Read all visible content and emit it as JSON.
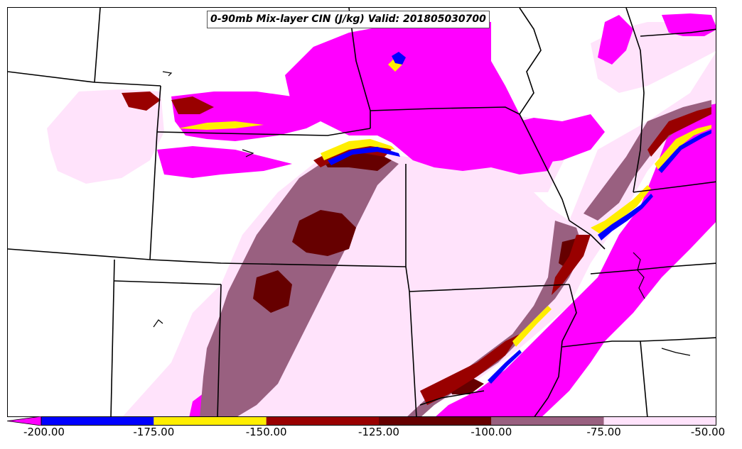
{
  "title": "0-90mb Mix-layer CIN (J/kg) Valid: 201805030700",
  "colorbar": {
    "ticks": [
      "-200.00",
      "-175.00",
      "-150.00",
      "-125.00",
      "-100.00",
      "-75.00",
      "-50.00"
    ],
    "bins": [
      {
        "from": -200,
        "to": -175,
        "color": "#0000ff"
      },
      {
        "from": -175,
        "to": -150,
        "color": "#ffee00"
      },
      {
        "from": -150,
        "to": -125,
        "color": "#990000"
      },
      {
        "from": -125,
        "to": -100,
        "color": "#660000"
      },
      {
        "from": -100,
        "to": -75,
        "color": "#996080"
      },
      {
        "from": -75,
        "to": -50,
        "color": "#ffe3fb"
      }
    ],
    "below_min_color": "#ff00ff"
  },
  "colors": {
    "strong_cin": "#ff00ff",
    "light_pink": "#ffe3fb",
    "mauve": "#996080",
    "dark_maroon": "#660000",
    "maroon": "#990000",
    "yellow": "#ffee00",
    "blue": "#0000ff",
    "boundaries": "#000000"
  }
}
